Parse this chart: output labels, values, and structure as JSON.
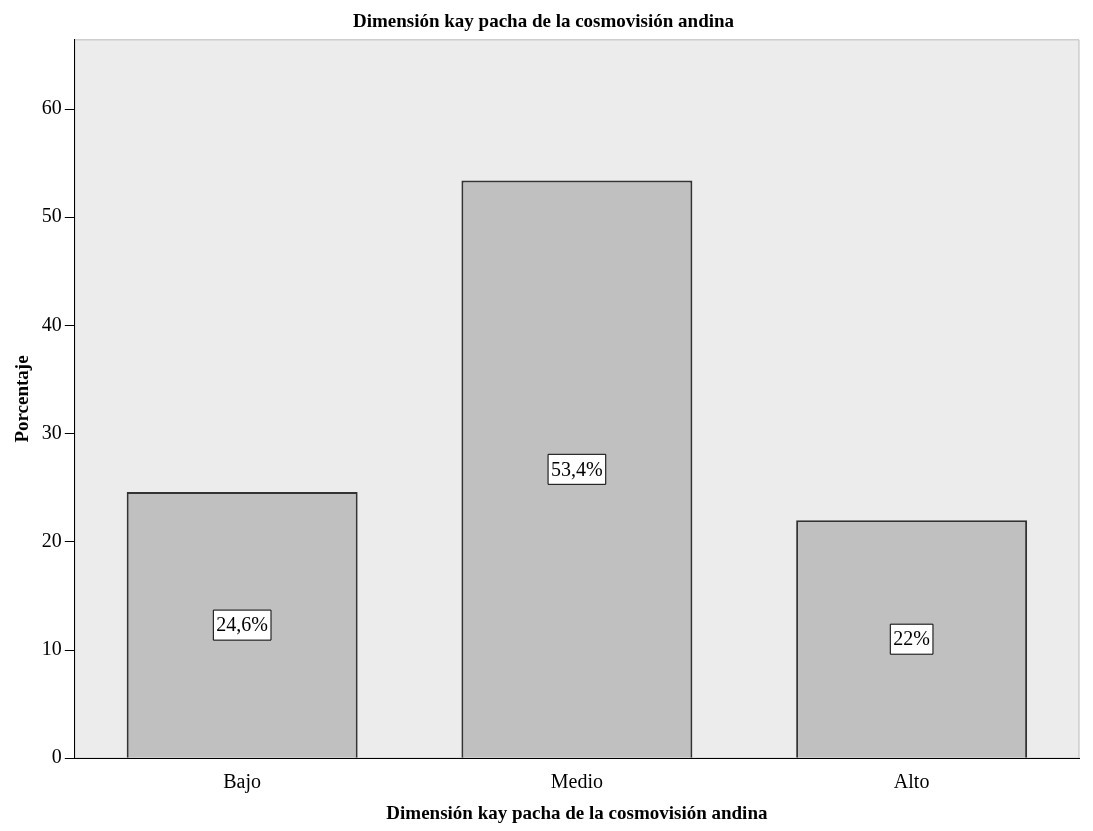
{
  "chart_data": {
    "type": "bar",
    "title": "Dimensión kay pacha de la cosmovisión andina",
    "xlabel": "Dimensión kay pacha de la cosmovisión andina",
    "ylabel": "Porcentaje",
    "categories": [
      "Bajo",
      "Medio",
      "Alto"
    ],
    "values": [
      24.6,
      53.4,
      22
    ],
    "value_labels": [
      "24,6%",
      "53,4%",
      "22%"
    ],
    "color": "#c0c0c0",
    "ylim": [
      0,
      66.4
    ],
    "yticks": [
      0,
      10,
      20,
      30,
      40,
      50,
      60
    ]
  }
}
